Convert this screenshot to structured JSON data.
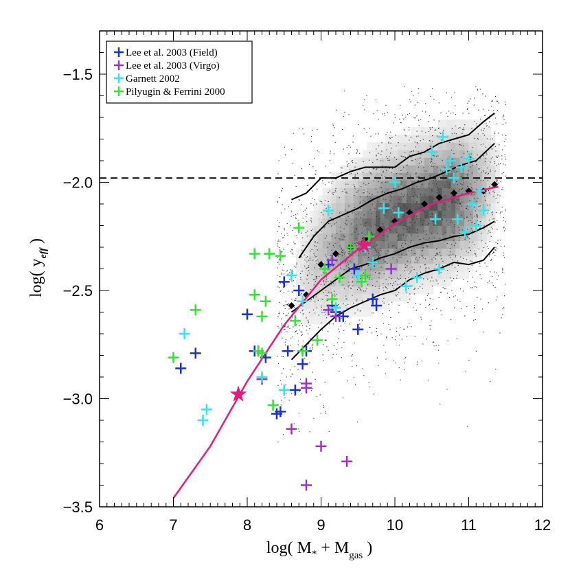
{
  "chart_data": {
    "type": "scatter",
    "title": "",
    "xlabel": {
      "main": "log( M",
      "sub1": "*",
      "mid": " + M",
      "sub2": "gas",
      "end": " )"
    },
    "ylabel": {
      "main": "log( y",
      "sub": "eff",
      "end": " )"
    },
    "xlim": [
      6,
      12
    ],
    "ylim": [
      -3.5,
      -1.3
    ],
    "xticks": [
      "6",
      "7",
      "8",
      "9",
      "10",
      "11",
      "12"
    ],
    "yticks": [
      "-1.5",
      "-2.0",
      "-2.5",
      "-3.0",
      "-3.5"
    ],
    "legend_position": "top-left",
    "reference_line": {
      "y": -1.98,
      "style": "dashed",
      "color": "#000000"
    },
    "density_field": {
      "description_free": true,
      "contours": [
        {
          "x": [
            8.6,
            8.8,
            9.0,
            9.2,
            9.4,
            9.6,
            9.8,
            10.0,
            10.2,
            10.4,
            10.6,
            10.8,
            11.0,
            11.2,
            11.35
          ],
          "y": [
            -2.08,
            -2.05,
            -1.98,
            -1.98,
            -1.95,
            -1.93,
            -1.93,
            -1.93,
            -1.88,
            -1.86,
            -1.82,
            -1.8,
            -1.78,
            -1.72,
            -1.68
          ]
        },
        {
          "x": [
            8.7,
            8.9,
            9.1,
            9.3,
            9.5,
            9.7,
            9.9,
            10.1,
            10.3,
            10.5,
            10.7,
            10.9,
            11.1,
            11.35
          ],
          "y": [
            -2.35,
            -2.25,
            -2.18,
            -2.15,
            -2.12,
            -2.08,
            -2.05,
            -2.03,
            -2.0,
            -1.98,
            -1.95,
            -1.92,
            -1.9,
            -1.82
          ]
        },
        {
          "x": [
            8.6,
            8.8,
            9.0,
            9.2,
            9.4,
            9.6,
            9.8,
            10.0,
            10.2,
            10.4,
            10.6,
            10.8,
            11.0,
            11.2,
            11.35
          ],
          "y": [
            -2.6,
            -2.55,
            -2.5,
            -2.45,
            -2.4,
            -2.38,
            -2.35,
            -2.33,
            -2.3,
            -2.28,
            -2.27,
            -2.25,
            -2.24,
            -2.21,
            -2.18
          ]
        },
        {
          "x": [
            8.6,
            8.8,
            9.0,
            9.2,
            9.4,
            9.6,
            9.8,
            10.0,
            10.2,
            10.4,
            10.6,
            10.8,
            11.0,
            11.2,
            11.35
          ],
          "y": [
            -2.82,
            -2.75,
            -2.68,
            -2.62,
            -2.58,
            -2.55,
            -2.52,
            -2.5,
            -2.45,
            -2.42,
            -2.4,
            -2.37,
            -2.38,
            -2.36,
            -2.3
          ]
        }
      ]
    },
    "binned_points": {
      "marker": "diamond",
      "color": "#000000",
      "x": [
        8.6,
        8.8,
        9.0,
        9.2,
        9.4,
        9.6,
        9.8,
        10.0,
        10.2,
        10.4,
        10.6,
        10.8,
        11.0,
        11.2,
        11.35
      ],
      "y": [
        -2.57,
        -2.52,
        -2.38,
        -2.33,
        -2.3,
        -2.26,
        -2.22,
        -2.18,
        -2.14,
        -2.1,
        -2.07,
        -2.05,
        -2.04,
        -2.04,
        -2.01
      ]
    },
    "model_curve": {
      "color": "#e8197d",
      "x": [
        7.0,
        7.5,
        8.0,
        8.5,
        9.0,
        9.5,
        10.0,
        10.5,
        11.0,
        11.4
      ],
      "y": [
        -3.46,
        -3.22,
        -2.92,
        -2.66,
        -2.45,
        -2.31,
        -2.19,
        -2.1,
        -2.05,
        -2.02
      ]
    },
    "stars": {
      "color": "#e8197d",
      "x": [
        7.88,
        9.58
      ],
      "y": [
        -2.98,
        -2.29
      ]
    },
    "series": [
      {
        "name": "Lee et al. 2003 (Field)",
        "color": "#1a2fd6",
        "marker": "plus",
        "x": [
          7.1,
          7.3,
          8.0,
          8.1,
          8.15,
          8.25,
          8.4,
          8.45,
          8.5,
          8.55,
          8.65,
          8.7,
          8.75,
          8.8,
          9.1,
          9.15,
          9.2,
          9.25,
          9.3,
          9.45,
          9.5,
          9.7,
          9.75
        ],
        "y": [
          -2.86,
          -2.79,
          -2.61,
          -2.78,
          -2.78,
          -2.81,
          -3.07,
          -3.06,
          -2.46,
          -2.78,
          -2.96,
          -2.5,
          -2.84,
          -2.78,
          -2.38,
          -2.57,
          -2.6,
          -2.62,
          -2.62,
          -2.4,
          -2.68,
          -2.54,
          -2.57
        ]
      },
      {
        "name": "Lee et al. 2003 (Virgo)",
        "color": "#9b2fd6",
        "marker": "plus",
        "x": [
          8.2,
          8.6,
          8.8,
          8.8,
          9.0,
          9.1,
          9.15,
          9.2,
          9.35,
          9.95,
          8.8
        ],
        "y": [
          -2.91,
          -3.14,
          -2.93,
          -2.95,
          -3.22,
          -2.59,
          -2.36,
          -2.62,
          -3.29,
          -2.4,
          -3.4
        ]
      },
      {
        "name": "Garnett 2002",
        "color": "#2ee6ee",
        "marker": "plus",
        "x": [
          7.15,
          7.4,
          7.45,
          8.2,
          8.5,
          8.6,
          8.75,
          9.1,
          9.2,
          9.5,
          9.6,
          9.7,
          9.85,
          10.0,
          10.05,
          10.15,
          10.3,
          10.5,
          10.55,
          10.6,
          10.65,
          10.7,
          10.75,
          10.8,
          10.85,
          10.9,
          10.95,
          11.0,
          11.05,
          11.1,
          11.15,
          11.2
        ],
        "y": [
          -2.7,
          -3.1,
          -3.05,
          -2.9,
          -2.96,
          -2.43,
          -2.55,
          -2.13,
          -2.58,
          -2.43,
          -2.3,
          -2.37,
          -2.12,
          -2.0,
          -2.14,
          -2.48,
          -2.44,
          -1.86,
          -2.17,
          -2.4,
          -1.79,
          -1.94,
          -1.9,
          -1.98,
          -2.17,
          -1.93,
          -2.23,
          -1.89,
          -2.1,
          -2.2,
          -2.04,
          -2.13
        ]
      },
      {
        "name": "Pilyugin & Ferrini 2000",
        "color": "#2ee62e",
        "marker": "plus",
        "x": [
          7.0,
          7.3,
          8.1,
          8.1,
          8.2,
          8.25,
          8.3,
          8.35,
          8.45,
          8.65,
          8.7,
          8.75,
          8.95,
          9.05,
          9.15,
          9.25,
          9.4,
          9.55,
          9.6,
          9.65,
          8.15,
          8.2,
          8.3
        ],
        "y": [
          -2.81,
          -2.59,
          -2.52,
          -2.33,
          -2.62,
          -2.55,
          -2.33,
          -3.03,
          -2.34,
          -2.64,
          -2.21,
          -2.78,
          -2.73,
          -2.4,
          -2.54,
          -2.44,
          -2.3,
          -2.46,
          -2.43,
          -2.25,
          -2.78,
          -2.79,
          -2.33
        ]
      }
    ]
  }
}
